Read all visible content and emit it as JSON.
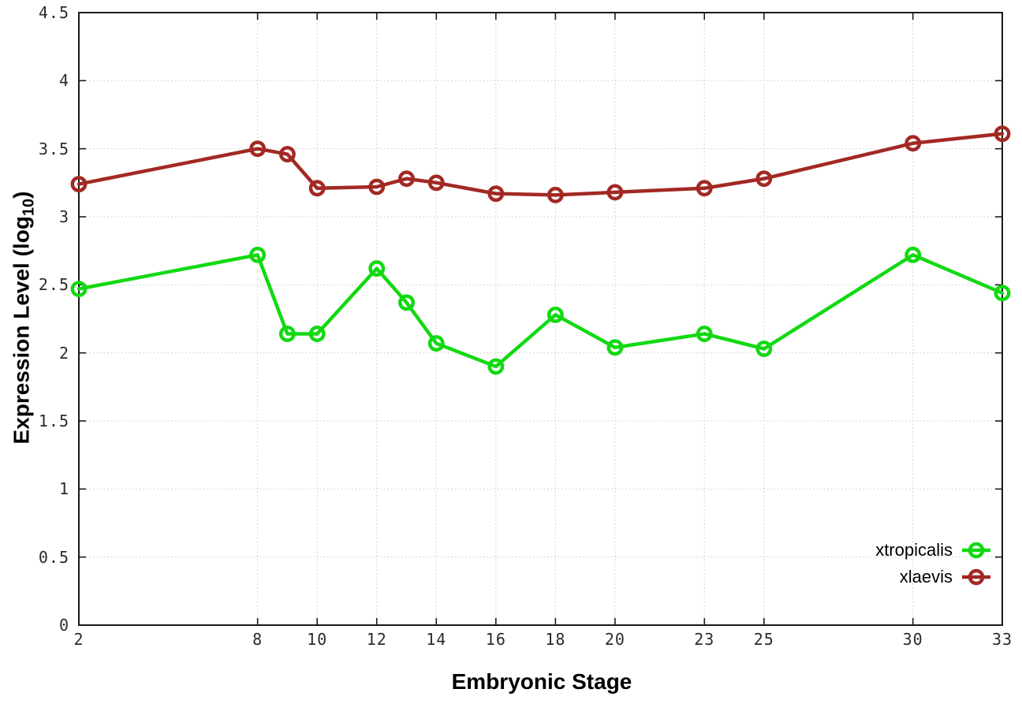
{
  "figure": {
    "xlabel": "Embryonic Stage",
    "ylabel_main": "Expression Level (log",
    "ylabel_sub": "10",
    "ylabel_end": ")"
  },
  "chart_data": {
    "type": "line",
    "title": "",
    "xlabel": "Embryonic Stage",
    "ylabel": "Expression Level (log10)",
    "x": [
      2,
      8,
      9,
      10,
      12,
      13,
      14,
      16,
      18,
      20,
      23,
      25,
      30,
      33
    ],
    "series": [
      {
        "name": "xtropicalis",
        "color": "#12d912",
        "values": [
          2.47,
          2.72,
          2.14,
          2.14,
          2.62,
          2.37,
          2.07,
          1.9,
          2.28,
          2.04,
          2.14,
          2.03,
          2.72,
          2.44
        ]
      },
      {
        "name": "xlaevis",
        "color": "#a22923",
        "values": [
          3.24,
          3.5,
          3.46,
          3.21,
          3.22,
          3.28,
          3.25,
          3.17,
          3.16,
          3.18,
          3.21,
          3.28,
          3.54,
          3.61
        ]
      }
    ],
    "xlim": [
      2,
      33
    ],
    "ylim": [
      0,
      4.5
    ],
    "x_ticks": [
      2,
      8,
      10,
      12,
      14,
      16,
      18,
      20,
      23,
      25,
      30,
      33
    ],
    "y_ticks": [
      0,
      0.5,
      1,
      1.5,
      2,
      2.5,
      3,
      3.5,
      4,
      4.5
    ],
    "grid": true,
    "marker": "open-circle",
    "legend_position": "bottom-right",
    "colors": {
      "grid": "#c9c9c9",
      "border": "#1a1a1a",
      "tick_label": "#2b2b2b"
    }
  }
}
